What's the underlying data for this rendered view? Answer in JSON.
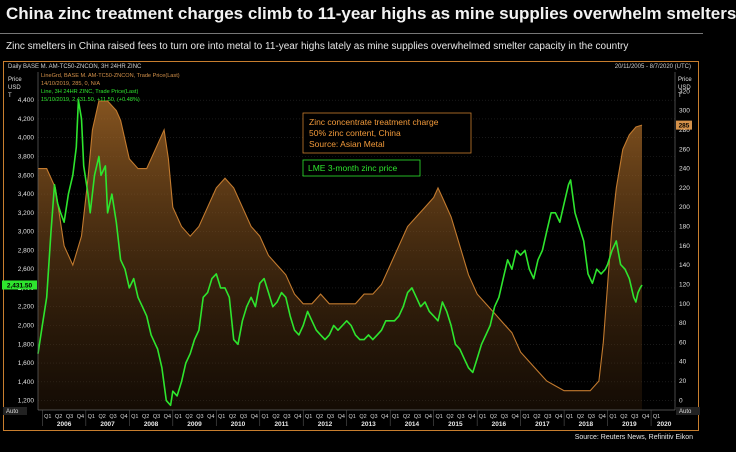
{
  "page": {
    "title": "China zinc treatment charges climb to 11-year highs as mine supplies overwhelm smelters",
    "subtitle": "Zinc smelters in China raised fees to turn ore into metal to 11-year highs lately as mine supplies overwhelmed smelter capacity in the country",
    "header_left": "Daily BASE M. AM-TC50-ZNCON, 3H 24HR ZINC",
    "header_right": "20/11/2005 - 8/7/2020 (UTC)",
    "source": "Source: Reuters News, Refinitiv Eikon",
    "auto_left": "Auto",
    "auto_right": "Auto"
  },
  "chart_data": {
    "type": "line",
    "left_axis": {
      "label": "Price USD T",
      "ticks": [
        1200,
        1400,
        1600,
        1800,
        2000,
        2200,
        2400,
        2600,
        2800,
        3000,
        3200,
        3400,
        3600,
        3800,
        4000,
        4200,
        4400
      ],
      "range": [
        1100,
        4700
      ]
    },
    "right_axis": {
      "label": "Price USD T",
      "ticks": [
        0,
        20,
        40,
        60,
        80,
        100,
        120,
        140,
        160,
        180,
        200,
        220,
        240,
        260,
        280,
        300,
        320
      ],
      "range": [
        -10,
        340
      ]
    },
    "x_years": [
      "2006",
      "2007",
      "2008",
      "2009",
      "2010",
      "2011",
      "2012",
      "2013",
      "2014",
      "2015",
      "2016",
      "2017",
      "2018",
      "2019",
      "2020"
    ],
    "x_quarters": [
      "Q1",
      "Q2",
      "Q3",
      "Q4"
    ],
    "x_range": [
      2005.9,
      2020.55
    ],
    "legend": [
      {
        "text": "LineGrd, BASE M. AM-TC50-ZNCON, Trade Price(Last)",
        "color": "#d4914a"
      },
      {
        "text": "14/10/2019, 285, 0, N/A",
        "color": "#d4914a"
      },
      {
        "text": "Line, 3H 24HR ZINC, Trade Price(Last)",
        "color": "#2ee52e"
      },
      {
        "text": "15/10/2019, 2,431.50, +11.50, (+0.48%)",
        "color": "#2ee52e"
      }
    ],
    "annotations": [
      {
        "text": "Zinc concentrate treatment charge",
        "color": "#f29a3a"
      },
      {
        "text": "50% zinc content, China",
        "color": "#f29a3a"
      },
      {
        "text": "Source: Asian Metal",
        "color": "#f29a3a"
      },
      {
        "text": "LME 3-month zinc price",
        "color": "#2ee52e"
      }
    ],
    "last_values": {
      "zinc": "2,431.50",
      "tc": "285"
    },
    "series": [
      {
        "name": "LME 3-month zinc price",
        "color": "#2ee52e",
        "axis": "left",
        "points": [
          [
            2005.9,
            1700
          ],
          [
            2006.0,
            2000
          ],
          [
            2006.1,
            2300
          ],
          [
            2006.2,
            3000
          ],
          [
            2006.28,
            3500
          ],
          [
            2006.35,
            3300
          ],
          [
            2006.42,
            3200
          ],
          [
            2006.5,
            3100
          ],
          [
            2006.6,
            3400
          ],
          [
            2006.7,
            3600
          ],
          [
            2006.78,
            3900
          ],
          [
            2006.83,
            4400
          ],
          [
            2006.9,
            4200
          ],
          [
            2006.95,
            3700
          ],
          [
            2007.05,
            3400
          ],
          [
            2007.1,
            3200
          ],
          [
            2007.2,
            3600
          ],
          [
            2007.3,
            3800
          ],
          [
            2007.35,
            3600
          ],
          [
            2007.45,
            3700
          ],
          [
            2007.5,
            3200
          ],
          [
            2007.6,
            3400
          ],
          [
            2007.7,
            3100
          ],
          [
            2007.8,
            2700
          ],
          [
            2007.9,
            2600
          ],
          [
            2008.0,
            2400
          ],
          [
            2008.1,
            2500
          ],
          [
            2008.2,
            2300
          ],
          [
            2008.3,
            2200
          ],
          [
            2008.4,
            2100
          ],
          [
            2008.5,
            1900
          ],
          [
            2008.6,
            1800
          ],
          [
            2008.65,
            1750
          ],
          [
            2008.75,
            1550
          ],
          [
            2008.85,
            1200
          ],
          [
            2008.95,
            1150
          ],
          [
            2009.0,
            1300
          ],
          [
            2009.1,
            1250
          ],
          [
            2009.2,
            1400
          ],
          [
            2009.3,
            1600
          ],
          [
            2009.4,
            1700
          ],
          [
            2009.5,
            1850
          ],
          [
            2009.6,
            1950
          ],
          [
            2009.7,
            2300
          ],
          [
            2009.8,
            2350
          ],
          [
            2009.9,
            2500
          ],
          [
            2010.0,
            2550
          ],
          [
            2010.1,
            2400
          ],
          [
            2010.2,
            2400
          ],
          [
            2010.3,
            2300
          ],
          [
            2010.4,
            1850
          ],
          [
            2010.5,
            1800
          ],
          [
            2010.6,
            2050
          ],
          [
            2010.7,
            2200
          ],
          [
            2010.8,
            2300
          ],
          [
            2010.9,
            2200
          ],
          [
            2011.0,
            2450
          ],
          [
            2011.1,
            2500
          ],
          [
            2011.2,
            2350
          ],
          [
            2011.3,
            2200
          ],
          [
            2011.4,
            2250
          ],
          [
            2011.5,
            2350
          ],
          [
            2011.6,
            2300
          ],
          [
            2011.7,
            2100
          ],
          [
            2011.8,
            1950
          ],
          [
            2011.9,
            1900
          ],
          [
            2012.0,
            2000
          ],
          [
            2012.1,
            2150
          ],
          [
            2012.2,
            2050
          ],
          [
            2012.3,
            1950
          ],
          [
            2012.4,
            1900
          ],
          [
            2012.5,
            1850
          ],
          [
            2012.6,
            1900
          ],
          [
            2012.7,
            2000
          ],
          [
            2012.8,
            1950
          ],
          [
            2012.9,
            2000
          ],
          [
            2013.0,
            2050
          ],
          [
            2013.1,
            2000
          ],
          [
            2013.2,
            1900
          ],
          [
            2013.3,
            1850
          ],
          [
            2013.4,
            1850
          ],
          [
            2013.5,
            1900
          ],
          [
            2013.6,
            1850
          ],
          [
            2013.7,
            1900
          ],
          [
            2013.8,
            1950
          ],
          [
            2013.9,
            2050
          ],
          [
            2014.0,
            2050
          ],
          [
            2014.1,
            2050
          ],
          [
            2014.2,
            2100
          ],
          [
            2014.3,
            2200
          ],
          [
            2014.4,
            2350
          ],
          [
            2014.5,
            2400
          ],
          [
            2014.6,
            2300
          ],
          [
            2014.7,
            2200
          ],
          [
            2014.8,
            2250
          ],
          [
            2014.9,
            2150
          ],
          [
            2015.0,
            2100
          ],
          [
            2015.1,
            2050
          ],
          [
            2015.2,
            2250
          ],
          [
            2015.3,
            2150
          ],
          [
            2015.4,
            2000
          ],
          [
            2015.5,
            1800
          ],
          [
            2015.6,
            1750
          ],
          [
            2015.7,
            1650
          ],
          [
            2015.8,
            1550
          ],
          [
            2015.9,
            1500
          ],
          [
            2016.0,
            1650
          ],
          [
            2016.1,
            1800
          ],
          [
            2016.2,
            1900
          ],
          [
            2016.3,
            2000
          ],
          [
            2016.4,
            2200
          ],
          [
            2016.5,
            2300
          ],
          [
            2016.6,
            2500
          ],
          [
            2016.7,
            2700
          ],
          [
            2016.8,
            2600
          ],
          [
            2016.9,
            2800
          ],
          [
            2017.0,
            2750
          ],
          [
            2017.1,
            2800
          ],
          [
            2017.2,
            2600
          ],
          [
            2017.3,
            2500
          ],
          [
            2017.4,
            2700
          ],
          [
            2017.5,
            2800
          ],
          [
            2017.6,
            3000
          ],
          [
            2017.7,
            3200
          ],
          [
            2017.8,
            3200
          ],
          [
            2017.9,
            3100
          ],
          [
            2018.0,
            3300
          ],
          [
            2018.1,
            3500
          ],
          [
            2018.15,
            3550
          ],
          [
            2018.25,
            3200
          ],
          [
            2018.35,
            3050
          ],
          [
            2018.45,
            2900
          ],
          [
            2018.55,
            2550
          ],
          [
            2018.65,
            2450
          ],
          [
            2018.75,
            2600
          ],
          [
            2018.85,
            2550
          ],
          [
            2018.95,
            2600
          ],
          [
            2019.0,
            2650
          ],
          [
            2019.1,
            2800
          ],
          [
            2019.2,
            2900
          ],
          [
            2019.3,
            2650
          ],
          [
            2019.4,
            2600
          ],
          [
            2019.5,
            2500
          ],
          [
            2019.6,
            2300
          ],
          [
            2019.65,
            2250
          ],
          [
            2019.7,
            2350
          ],
          [
            2019.75,
            2400
          ],
          [
            2019.79,
            2431.5
          ]
        ]
      },
      {
        "name": "Zinc concentrate treatment charge",
        "color": "#c27a2e",
        "axis": "right",
        "points": [
          [
            2005.9,
            240
          ],
          [
            2006.1,
            240
          ],
          [
            2006.3,
            220
          ],
          [
            2006.5,
            160
          ],
          [
            2006.7,
            140
          ],
          [
            2006.9,
            170
          ],
          [
            2007.05,
            230
          ],
          [
            2007.15,
            280
          ],
          [
            2007.3,
            310
          ],
          [
            2007.5,
            310
          ],
          [
            2007.7,
            300
          ],
          [
            2007.8,
            290
          ],
          [
            2008.0,
            250
          ],
          [
            2008.2,
            240
          ],
          [
            2008.4,
            240
          ],
          [
            2008.6,
            260
          ],
          [
            2008.8,
            280
          ],
          [
            2008.9,
            250
          ],
          [
            2009.0,
            200
          ],
          [
            2009.2,
            180
          ],
          [
            2009.4,
            170
          ],
          [
            2009.6,
            180
          ],
          [
            2009.8,
            200
          ],
          [
            2010.0,
            220
          ],
          [
            2010.2,
            230
          ],
          [
            2010.4,
            220
          ],
          [
            2010.6,
            200
          ],
          [
            2010.8,
            180
          ],
          [
            2011.0,
            170
          ],
          [
            2011.2,
            150
          ],
          [
            2011.4,
            140
          ],
          [
            2011.6,
            130
          ],
          [
            2011.8,
            110
          ],
          [
            2012.0,
            100
          ],
          [
            2012.2,
            100
          ],
          [
            2012.4,
            110
          ],
          [
            2012.6,
            100
          ],
          [
            2012.8,
            100
          ],
          [
            2013.0,
            100
          ],
          [
            2013.2,
            100
          ],
          [
            2013.4,
            110
          ],
          [
            2013.6,
            110
          ],
          [
            2013.8,
            120
          ],
          [
            2014.0,
            140
          ],
          [
            2014.2,
            160
          ],
          [
            2014.4,
            180
          ],
          [
            2014.6,
            190
          ],
          [
            2014.8,
            200
          ],
          [
            2015.0,
            210
          ],
          [
            2015.1,
            220
          ],
          [
            2015.2,
            210
          ],
          [
            2015.4,
            190
          ],
          [
            2015.6,
            160
          ],
          [
            2015.8,
            130
          ],
          [
            2016.0,
            110
          ],
          [
            2016.2,
            100
          ],
          [
            2016.4,
            90
          ],
          [
            2016.6,
            80
          ],
          [
            2016.8,
            70
          ],
          [
            2017.0,
            50
          ],
          [
            2017.2,
            40
          ],
          [
            2017.4,
            30
          ],
          [
            2017.6,
            20
          ],
          [
            2017.8,
            15
          ],
          [
            2018.0,
            10
          ],
          [
            2018.2,
            10
          ],
          [
            2018.4,
            10
          ],
          [
            2018.6,
            10
          ],
          [
            2018.8,
            20
          ],
          [
            2018.9,
            60
          ],
          [
            2019.0,
            120
          ],
          [
            2019.1,
            180
          ],
          [
            2019.2,
            220
          ],
          [
            2019.35,
            260
          ],
          [
            2019.5,
            275
          ],
          [
            2019.65,
            283
          ],
          [
            2019.79,
            285
          ]
        ]
      }
    ]
  }
}
